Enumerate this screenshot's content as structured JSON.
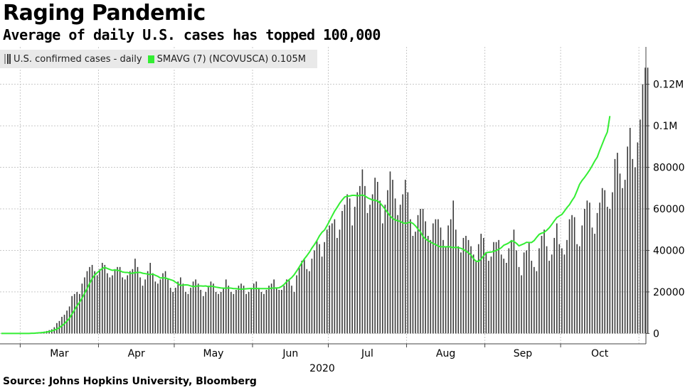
{
  "title": "Raging Pandemic",
  "subtitle": "Average of daily U.S. cases has topped 100,000",
  "source": "Source: Johns Hopkins University, Bloomberg",
  "colors": {
    "bars": "#3a3a3a",
    "average_line": "#33ee33",
    "grid": "#c8c8c8",
    "legend_bg": "#e9e9e9"
  },
  "chart_data": {
    "type": "bar",
    "x_axis": {
      "year_label": "2020",
      "month_ticks": [
        "Mar",
        "Apr",
        "May",
        "Jun",
        "Jul",
        "Aug",
        "Sep",
        "Oct"
      ]
    },
    "y_axis": {
      "side": "right",
      "range": [
        -5000,
        138000
      ],
      "ticks": [
        "0",
        "20000",
        "40000",
        "60000",
        "80000",
        "0.1M",
        "0.12M"
      ],
      "tick_values": [
        0,
        20000,
        40000,
        60000,
        80000,
        100000,
        120000
      ]
    },
    "grid": true,
    "legend_position": "top-left",
    "series": [
      {
        "name": "U.S. confirmed cases - daily",
        "kind": "bars",
        "start_date": "2020-02-22",
        "values": [
          0,
          0,
          0,
          0,
          0,
          0,
          0,
          0,
          0,
          0,
          0,
          100,
          200,
          300,
          400,
          600,
          700,
          900,
          1200,
          1600,
          2000,
          3000,
          5000,
          6000,
          8000,
          9000,
          11000,
          13000,
          18000,
          19000,
          20000,
          19000,
          24000,
          27000,
          30000,
          32000,
          33000,
          30000,
          28000,
          31000,
          34000,
          33000,
          29000,
          27000,
          28000,
          31000,
          32000,
          32000,
          27000,
          26000,
          28000,
          30000,
          31000,
          36000,
          32000,
          27000,
          23000,
          26000,
          30000,
          34000,
          29000,
          25000,
          24000,
          26000,
          29000,
          30000,
          26000,
          22000,
          20000,
          22000,
          25000,
          27000,
          24000,
          20000,
          19000,
          22000,
          25000,
          26000,
          24000,
          21000,
          18000,
          20000,
          23000,
          25000,
          24000,
          20000,
          19000,
          20000,
          22000,
          26000,
          23000,
          20000,
          19000,
          21000,
          23000,
          24000,
          23000,
          19000,
          20000,
          22000,
          24000,
          25000,
          22000,
          20000,
          19000,
          21000,
          23000,
          24000,
          26000,
          22000,
          21000,
          21000,
          23000,
          26000,
          26000,
          23000,
          20000,
          28000,
          32000,
          35000,
          36000,
          31000,
          30000,
          36000,
          40000,
          45000,
          43000,
          37000,
          44000,
          50000,
          52000,
          53000,
          55000,
          46000,
          50000,
          59000,
          62000,
          67000,
          65000,
          52000,
          61000,
          68000,
          71000,
          79000,
          71000,
          58000,
          62000,
          67000,
          75000,
          73000,
          64000,
          53000,
          62000,
          69000,
          78000,
          74000,
          65000,
          57000,
          62000,
          67000,
          74000,
          68000,
          55000,
          47000,
          49000,
          57000,
          60000,
          60000,
          54000,
          47000,
          45000,
          53000,
          55000,
          55000,
          51000,
          45000,
          42000,
          52000,
          55000,
          64000,
          50000,
          42000,
          39000,
          46000,
          47000,
          45000,
          42000,
          38000,
          35000,
          43000,
          48000,
          46000,
          39000,
          35000,
          37000,
          44000,
          44000,
          45000,
          38000,
          36000,
          34000,
          41000,
          45000,
          50000,
          40000,
          32000,
          28000,
          39000,
          40000,
          44000,
          35000,
          32000,
          30000,
          41000,
          47000,
          50000,
          42000,
          35000,
          38000,
          46000,
          53000,
          43000,
          41000,
          38000,
          45000,
          55000,
          57000,
          56000,
          43000,
          42000,
          52000,
          60000,
          64000,
          63000,
          51000,
          48000,
          58000,
          63000,
          70000,
          69000,
          61000,
          60000,
          68000,
          84000,
          87000,
          77000,
          70000,
          74000,
          90000,
          99000,
          84000,
          80000,
          92000,
          103000,
          120000,
          128000,
          128000
        ],
        "value_scale_note": ""
      },
      {
        "name": "SMAVG (7) (NCOVUSCA) 0.105M",
        "kind": "line",
        "start_date": "2020-02-22",
        "values": [
          0,
          0,
          0,
          0,
          0,
          0,
          0,
          0,
          0,
          0,
          0,
          0,
          100,
          100,
          200,
          300,
          400,
          500,
          700,
          900,
          1200,
          1600,
          2100,
          2800,
          3700,
          4700,
          5900,
          7300,
          9300,
          11300,
          13300,
          15000,
          17000,
          19300,
          21600,
          24100,
          26400,
          28100,
          29300,
          30300,
          31300,
          31800,
          31300,
          30800,
          30400,
          30600,
          30400,
          30200,
          29600,
          29400,
          29400,
          29000,
          29000,
          29300,
          29400,
          29400,
          29000,
          28800,
          28600,
          28300,
          28600,
          28000,
          27500,
          26700,
          26800,
          26700,
          26300,
          25900,
          25500,
          24700,
          23900,
          23100,
          23300,
          23400,
          23300,
          22900,
          22600,
          22700,
          22900,
          22900,
          22800,
          22900,
          22500,
          22800,
          22600,
          22300,
          22100,
          21900,
          21800,
          21800,
          21900,
          21800,
          21600,
          21600,
          21400,
          21300,
          21400,
          21500,
          21600,
          21700,
          21600,
          21700,
          21600,
          21600,
          21600,
          21600,
          21600,
          21800,
          21900,
          21900,
          22000,
          22600,
          23600,
          24900,
          25900,
          26900,
          28300,
          30100,
          32000,
          34000,
          35900,
          37400,
          39100,
          41100,
          42800,
          44700,
          47000,
          48700,
          49800,
          51900,
          54200,
          56600,
          58900,
          60700,
          62700,
          64300,
          65700,
          66100,
          66200,
          66500,
          66500,
          66300,
          66400,
          66700,
          66200,
          65400,
          64800,
          64300,
          64100,
          63800,
          62800,
          61400,
          59800,
          58200,
          56500,
          55400,
          54600,
          54300,
          53900,
          53300,
          53000,
          53300,
          53600,
          53000,
          51800,
          50300,
          48900,
          46700,
          45500,
          44700,
          44000,
          43300,
          42800,
          42100,
          41700,
          41800,
          41700,
          41800,
          41600,
          41300,
          41500,
          41300,
          41000,
          40400,
          39700,
          38800,
          37800,
          36000,
          34800,
          34700,
          35800,
          37400,
          38900,
          39100,
          39200,
          39500,
          40000,
          40500,
          41300,
          42500,
          43000,
          43600,
          44600,
          44300,
          43400,
          42200,
          42700,
          43200,
          43900,
          43800,
          43800,
          44700,
          46300,
          47700,
          48300,
          48700,
          49700,
          50900,
          52500,
          54200,
          55800,
          56600,
          57300,
          58900,
          60600,
          62000,
          64000,
          65800,
          68700,
          71800,
          73700,
          75200,
          76900,
          78700,
          80800,
          83000,
          84900,
          88200,
          91200,
          94300,
          97000,
          104700
        ],
        "value_scale_note": ""
      }
    ]
  },
  "legend": {
    "items": [
      {
        "label": "U.S. confirmed cases - daily"
      },
      {
        "label": "SMAVG (7) (NCOVUSCA) 0.105M"
      }
    ]
  }
}
